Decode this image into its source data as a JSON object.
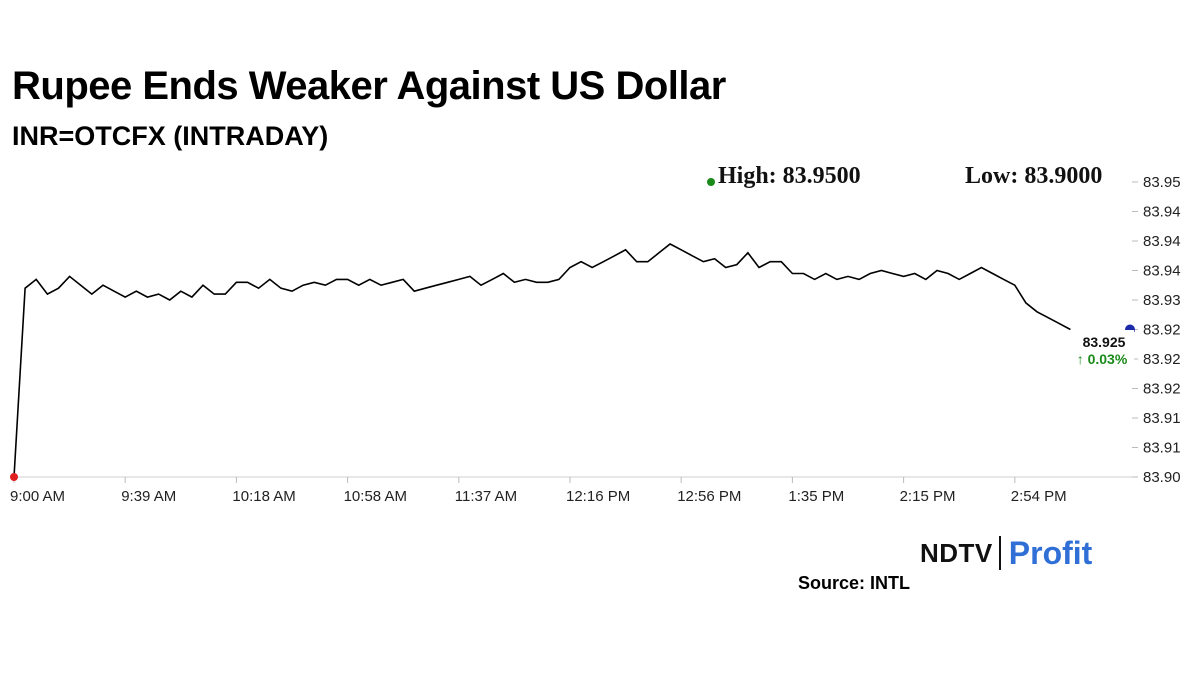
{
  "title": "Rupee Ends Weaker Against US Dollar",
  "subtitle": "INR=OTCFX (INTRADAY)",
  "source": "Source: INTL",
  "brand": {
    "part1": "NDTV",
    "part2": "Profit",
    "accent": "#2f6fd6",
    "dot_color": "#e02020"
  },
  "colors": {
    "line": "#000000",
    "high_marker": "#1a8a1a",
    "low_marker": "#e02020",
    "last_marker": "#1a2aa8",
    "change_positive": "#1a8a1a"
  },
  "chart_data": {
    "type": "line",
    "title": "Rupee Ends Weaker Against US Dollar",
    "subtitle": "INR=OTCFX (INTRADAY)",
    "xlabel": "",
    "ylabel": "",
    "ylim": [
      83.9,
      83.95
    ],
    "grid": false,
    "y_tick_labels": [
      "83.95",
      "83.94",
      "83.94",
      "83.94",
      "83.93",
      "83.92",
      "83.92",
      "83.92",
      "83.91",
      "83.91",
      "83.90"
    ],
    "x_tick_labels": [
      "9:00 AM",
      "9:39 AM",
      "10:18 AM",
      "10:58 AM",
      "11:37 AM",
      "12:16 PM",
      "12:56 PM",
      "1:35 PM",
      "2:15 PM",
      "2:54 PM"
    ],
    "high_label": "High: 83.9500",
    "low_label": "Low: 83.9000",
    "high_value": 83.95,
    "low_value": 83.9,
    "last_value_label": "83.925",
    "change_label": "↑ 0.03%",
    "series": [
      {
        "x": [
          "9:00 AM",
          "9:04 AM",
          "9:08 AM",
          "9:12 AM",
          "9:16 AM",
          "9:20 AM",
          "9:24 AM",
          "9:28 AM",
          "9:32 AM",
          "9:36 AM",
          "9:39 AM",
          "9:43 AM",
          "9:47 AM",
          "9:51 AM",
          "9:55 AM",
          "9:59 AM",
          "10:03 AM",
          "10:07 AM",
          "10:11 AM",
          "10:15 AM",
          "10:18 AM",
          "10:22 AM",
          "10:26 AM",
          "10:30 AM",
          "10:34 AM",
          "10:38 AM",
          "10:42 AM",
          "10:46 AM",
          "10:50 AM",
          "10:54 AM",
          "10:58 AM",
          "11:02 AM",
          "11:06 AM",
          "11:10 AM",
          "11:14 AM",
          "11:18 AM",
          "11:22 AM",
          "11:26 AM",
          "11:30 AM",
          "11:34 AM",
          "11:37 AM",
          "11:41 AM",
          "11:45 AM",
          "11:49 AM",
          "11:53 AM",
          "11:57 AM",
          "12:01 PM",
          "12:05 PM",
          "12:09 PM",
          "12:13 PM",
          "12:16 PM",
          "12:20 PM",
          "12:24 PM",
          "12:28 PM",
          "12:32 PM",
          "12:36 PM",
          "12:40 PM",
          "12:44 PM",
          "12:48 PM",
          "12:52 PM",
          "12:56 PM",
          "1:00 PM",
          "1:04 PM",
          "1:08 PM",
          "1:12 PM",
          "1:16 PM",
          "1:20 PM",
          "1:24 PM",
          "1:28 PM",
          "1:32 PM",
          "1:35 PM",
          "1:39 PM",
          "1:43 PM",
          "1:47 PM",
          "1:51 PM",
          "1:55 PM",
          "1:59 PM",
          "2:03 PM",
          "2:07 PM",
          "2:11 PM",
          "2:15 PM",
          "2:19 PM",
          "2:23 PM",
          "2:27 PM",
          "2:31 PM",
          "2:35 PM",
          "2:39 PM",
          "2:43 PM",
          "2:47 PM",
          "2:51 PM",
          "2:54 PM",
          "2:58 PM",
          "3:02 PM",
          "3:06 PM",
          "3:10 PM",
          "3:14 PM"
        ],
        "values": [
          83.9,
          83.932,
          83.9335,
          83.931,
          83.932,
          83.934,
          83.9325,
          83.931,
          83.9325,
          83.9315,
          83.9305,
          83.9315,
          83.9305,
          83.931,
          83.93,
          83.9315,
          83.9305,
          83.9325,
          83.931,
          83.931,
          83.933,
          83.933,
          83.932,
          83.9335,
          83.932,
          83.9315,
          83.9325,
          83.933,
          83.9325,
          83.9335,
          83.9335,
          83.9325,
          83.9335,
          83.9325,
          83.933,
          83.9335,
          83.9315,
          83.932,
          83.9325,
          83.933,
          83.9335,
          83.934,
          83.9325,
          83.9335,
          83.9345,
          83.933,
          83.9335,
          83.933,
          83.933,
          83.9335,
          83.9355,
          83.9365,
          83.9355,
          83.9365,
          83.9375,
          83.9385,
          83.9365,
          83.9365,
          83.938,
          83.9395,
          83.9385,
          83.9375,
          83.9365,
          83.937,
          83.9355,
          83.936,
          83.938,
          83.9355,
          83.9365,
          83.9365,
          83.9345,
          83.9345,
          83.9335,
          83.9345,
          83.9335,
          83.934,
          83.9335,
          83.9345,
          83.935,
          83.9345,
          83.934,
          83.9345,
          83.9335,
          83.935,
          83.9345,
          83.9335,
          83.9345,
          83.9355,
          83.9345,
          83.9335,
          83.9325,
          83.9295,
          83.928,
          83.927,
          83.926,
          83.925
        ]
      }
    ]
  }
}
